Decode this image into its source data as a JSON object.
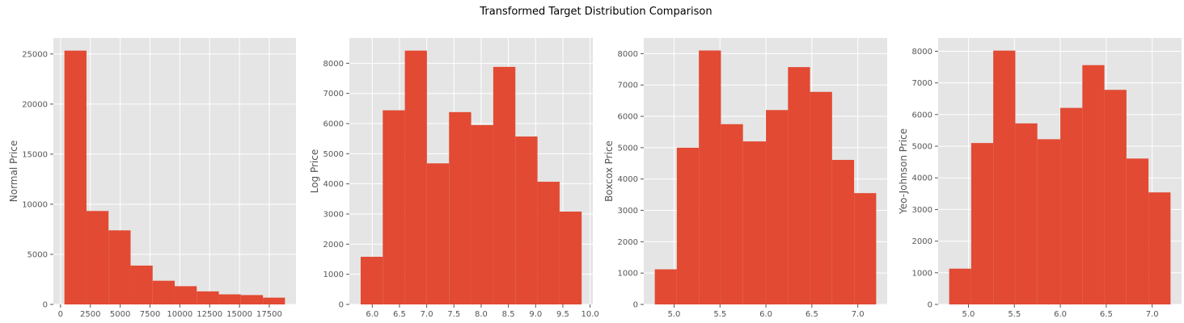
{
  "figure": {
    "title": "Transformed Target Distribution Comparison"
  },
  "colors": {
    "bar": "#e24a33",
    "panel_bg": "#e5e5e5",
    "grid": "#ffffff",
    "tick": "#555555"
  },
  "chart_data": [
    {
      "type": "bar",
      "subtype": "histogram",
      "ylabel": "Normal Price",
      "xlabel": "",
      "bin_edges": [
        326,
        2175,
        4024,
        5873,
        7722,
        9571,
        11420,
        13269,
        15118,
        16967,
        18816
      ],
      "values": [
        25335,
        9328,
        7393,
        3878,
        2364,
        1820,
        1303,
        1006,
        936,
        677
      ],
      "xlim": [
        -600,
        19740
      ],
      "ylim": [
        0,
        26600
      ],
      "xticks": [
        0,
        2500,
        5000,
        7500,
        10000,
        12500,
        15000,
        17500
      ],
      "yticks": [
        0,
        5000,
        10000,
        15000,
        20000,
        25000
      ],
      "grid": true
    },
    {
      "type": "bar",
      "subtype": "histogram",
      "ylabel": "Log Price",
      "xlabel": "",
      "bin_edges": [
        5.787,
        6.193,
        6.599,
        7.004,
        7.41,
        7.816,
        8.222,
        8.628,
        9.034,
        9.44,
        9.845
      ],
      "values": [
        1580,
        6440,
        8420,
        4680,
        6380,
        5950,
        7880,
        5570,
        4070,
        3080
      ],
      "xlim": [
        5.58,
        10.05
      ],
      "ylim": [
        0,
        8840
      ],
      "xticks": [
        6.0,
        6.5,
        7.0,
        7.5,
        8.0,
        8.5,
        9.0,
        9.5,
        10.0
      ],
      "yticks": [
        0,
        1000,
        2000,
        3000,
        4000,
        5000,
        6000,
        7000,
        8000
      ],
      "grid": true
    },
    {
      "type": "bar",
      "subtype": "histogram",
      "ylabel": "Boxcox Price",
      "xlabel": "",
      "bin_edges": [
        4.79,
        5.03,
        5.27,
        5.51,
        5.75,
        6.0,
        6.24,
        6.48,
        6.72,
        6.96,
        7.2
      ],
      "values": [
        1120,
        5000,
        8100,
        5750,
        5200,
        6200,
        7570,
        6780,
        4610,
        3550
      ],
      "xlim": [
        4.67,
        7.32
      ],
      "ylim": [
        0,
        8500
      ],
      "xticks": [
        5.0,
        5.5,
        6.0,
        6.5,
        7.0
      ],
      "yticks": [
        0,
        1000,
        2000,
        3000,
        4000,
        5000,
        6000,
        7000,
        8000
      ],
      "grid": true
    },
    {
      "type": "bar",
      "subtype": "histogram",
      "ylabel": "Yeo-Johnson Price",
      "xlabel": "",
      "bin_edges": [
        4.79,
        5.03,
        5.27,
        5.51,
        5.75,
        6.0,
        6.24,
        6.48,
        6.72,
        6.96,
        7.2
      ],
      "values": [
        1130,
        5100,
        8020,
        5720,
        5220,
        6210,
        7560,
        6780,
        4610,
        3540
      ],
      "xlim": [
        4.67,
        7.32
      ],
      "ylim": [
        0,
        8420
      ],
      "xticks": [
        5.0,
        5.5,
        6.0,
        6.5,
        7.0
      ],
      "yticks": [
        0,
        1000,
        2000,
        3000,
        4000,
        5000,
        6000,
        7000,
        8000
      ],
      "grid": true
    }
  ]
}
